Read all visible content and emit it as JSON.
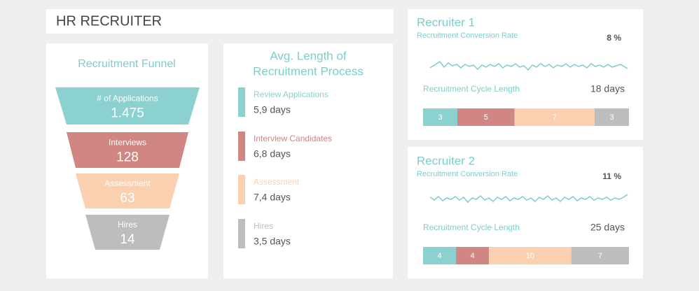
{
  "header": {
    "title": "HR RECRUITER"
  },
  "funnel": {
    "title": "Recruitment Funnel",
    "stages": [
      {
        "label": "# of Applications",
        "value": "1.475",
        "color": "#8ad1cf"
      },
      {
        "label": "Interviews",
        "value": "128",
        "color": "#d08683"
      },
      {
        "label": "Assessment",
        "value": "63",
        "color": "#fbd0b0"
      },
      {
        "label": "Hires",
        "value": "14",
        "color": "#bdbdbd"
      }
    ]
  },
  "avg_length": {
    "title": [
      "Avg. Length of",
      "Recruitment Process"
    ],
    "items": [
      {
        "label": "Review Applications",
        "value": "5,9 days",
        "color": "#8ad1cf"
      },
      {
        "label": "Interview Candidates",
        "value": "6,8 days",
        "color": "#d08683"
      },
      {
        "label": "Assessment",
        "value": "7,4 days",
        "color": "#fbd0b0"
      },
      {
        "label": "Hires",
        "value": "3,5 days",
        "color": "#bdbdbd"
      }
    ]
  },
  "recruiters": [
    {
      "title": "Recruiter 1",
      "conversion_label": "Recruitment Conversion Rate",
      "conversion": "8 %",
      "cycle_label": "Recruitment Cycle Length",
      "cycle": "18 days",
      "segments": [
        3,
        5,
        7,
        3
      ]
    },
    {
      "title": "Recruiter 2",
      "conversion_label": "Recruitment Conversion Rate",
      "conversion": "11 %",
      "cycle_label": "Recruitment Cycle Length",
      "cycle": "25 days",
      "segments": [
        4,
        4,
        10,
        7
      ]
    }
  ],
  "segment_colors": [
    "#8ad1cf",
    "#d08683",
    "#fbd0b0",
    "#bdbdbd"
  ]
}
